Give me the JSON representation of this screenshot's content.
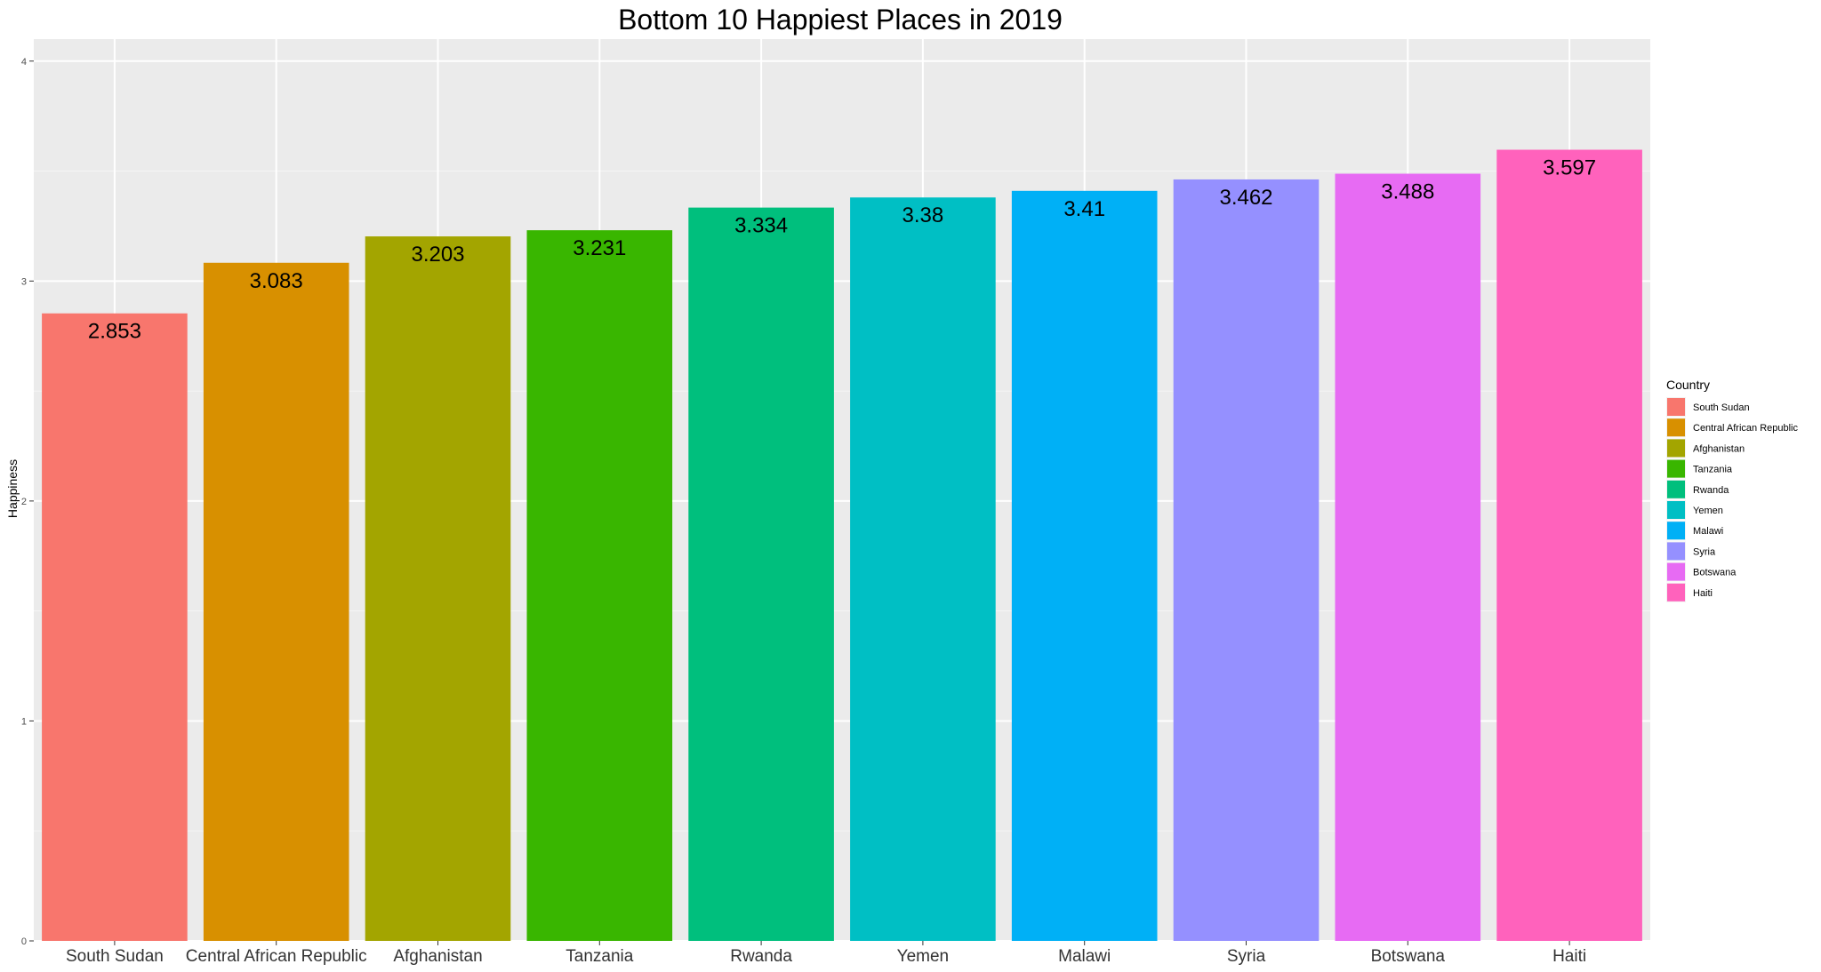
{
  "chart_data": {
    "type": "bar",
    "title": "Bottom 10 Happiest Places in 2019",
    "xlabel": "",
    "ylabel": "Happiness",
    "ylim": [
      0,
      4.1
    ],
    "y_ticks": [
      0,
      1,
      2,
      3,
      4
    ],
    "grid": true,
    "legend_position": "right",
    "legend_title": "Country",
    "categories": [
      "South Sudan",
      "Central African Republic",
      "Afghanistan",
      "Tanzania",
      "Rwanda",
      "Yemen",
      "Malawi",
      "Syria",
      "Botswana",
      "Haiti"
    ],
    "values": [
      2.853,
      3.083,
      3.203,
      3.231,
      3.334,
      3.38,
      3.41,
      3.462,
      3.488,
      3.597
    ],
    "value_labels": [
      "2.853",
      "3.083",
      "3.203",
      "3.231",
      "3.334",
      "3.38",
      "3.41",
      "3.462",
      "3.488",
      "3.597"
    ],
    "colors": [
      "#F8766D",
      "#D89000",
      "#A3A500",
      "#39B600",
      "#00BF7D",
      "#00BFC4",
      "#00B0F6",
      "#9590FF",
      "#E76BF3",
      "#FF62BC"
    ]
  }
}
